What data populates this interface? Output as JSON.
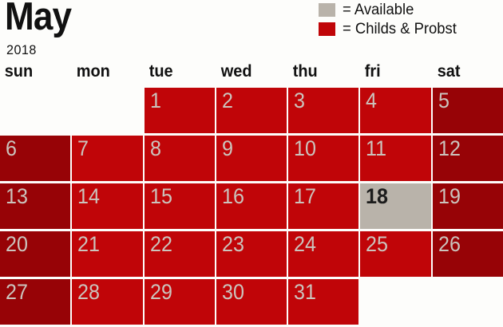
{
  "header": {
    "month": "May",
    "year": "2018"
  },
  "legend": {
    "items": [
      {
        "label": "= Available",
        "swatch_color": "#b9b3aa",
        "swatch_name": "available-swatch"
      },
      {
        "label": "= Childs & Probst",
        "swatch_color": "#c00508",
        "swatch_name": "booked-swatch"
      }
    ]
  },
  "colors": {
    "booked": "#c00508",
    "booked_weekend": "#970306",
    "available": "#b9b3aa",
    "day_number": "#cbc4bd",
    "day_number_available": "#1c1c1c",
    "text": "#111111",
    "background": "#fdfdfb"
  },
  "weekday_headers": [
    "sun",
    "mon",
    "tue",
    "wed",
    "thu",
    "fri",
    "sat"
  ],
  "weeks": [
    [
      null,
      null,
      {
        "day": "1",
        "status": "booked"
      },
      {
        "day": "2",
        "status": "booked"
      },
      {
        "day": "3",
        "status": "booked"
      },
      {
        "day": "4",
        "status": "booked"
      },
      {
        "day": "5",
        "status": "booked_weekend"
      }
    ],
    [
      {
        "day": "6",
        "status": "booked_weekend"
      },
      {
        "day": "7",
        "status": "booked"
      },
      {
        "day": "8",
        "status": "booked"
      },
      {
        "day": "9",
        "status": "booked"
      },
      {
        "day": "10",
        "status": "booked"
      },
      {
        "day": "11",
        "status": "booked"
      },
      {
        "day": "12",
        "status": "booked_weekend"
      }
    ],
    [
      {
        "day": "13",
        "status": "booked_weekend"
      },
      {
        "day": "14",
        "status": "booked"
      },
      {
        "day": "15",
        "status": "booked"
      },
      {
        "day": "16",
        "status": "booked"
      },
      {
        "day": "17",
        "status": "booked"
      },
      {
        "day": "18",
        "status": "available"
      },
      {
        "day": "19",
        "status": "booked_weekend"
      }
    ],
    [
      {
        "day": "20",
        "status": "booked_weekend"
      },
      {
        "day": "21",
        "status": "booked"
      },
      {
        "day": "22",
        "status": "booked"
      },
      {
        "day": "23",
        "status": "booked"
      },
      {
        "day": "24",
        "status": "booked"
      },
      {
        "day": "25",
        "status": "booked"
      },
      {
        "day": "26",
        "status": "booked_weekend"
      }
    ],
    [
      {
        "day": "27",
        "status": "booked_weekend"
      },
      {
        "day": "28",
        "status": "booked"
      },
      {
        "day": "29",
        "status": "booked"
      },
      {
        "day": "30",
        "status": "booked"
      },
      {
        "day": "31",
        "status": "booked"
      },
      null,
      null
    ]
  ]
}
